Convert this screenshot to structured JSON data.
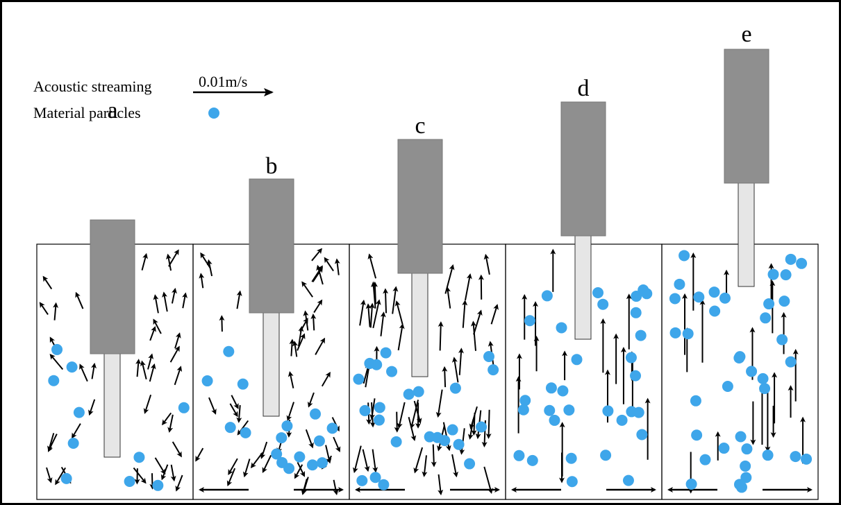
{
  "legend": {
    "streaming": "Acoustic streaming",
    "scale": "0.01m/s",
    "particles": "Material particles"
  },
  "panels": [
    {
      "label": "a"
    },
    {
      "label": "b"
    },
    {
      "label": "c"
    },
    {
      "label": "d"
    },
    {
      "label": "e"
    }
  ]
}
